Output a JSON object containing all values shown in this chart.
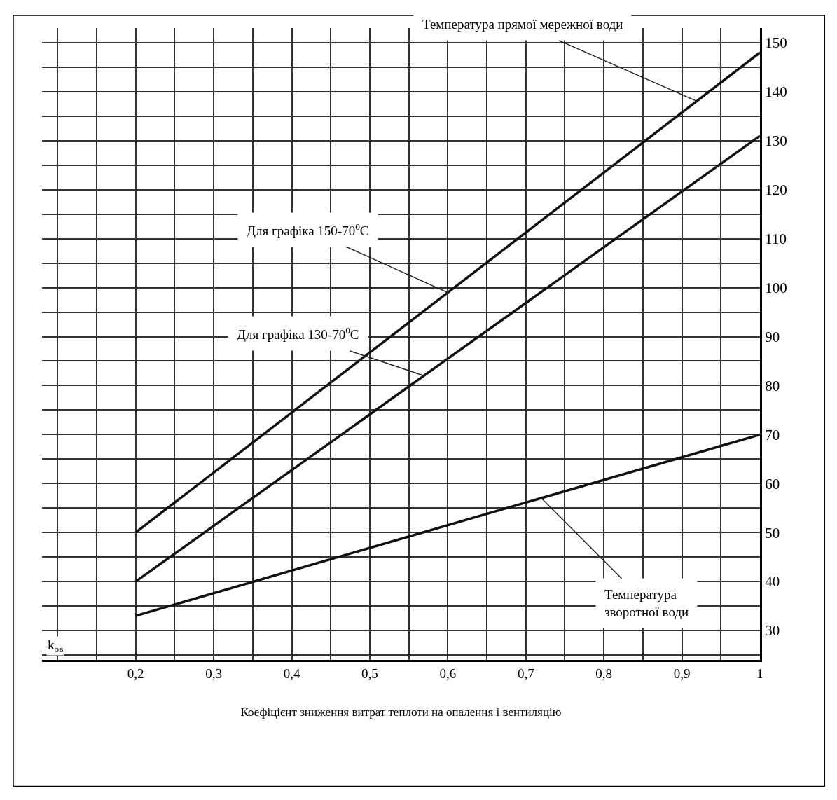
{
  "chart_data": {
    "type": "line",
    "xlabel": "Коефіцієнт зниження витрат теплоти на опалення і вентиляцію",
    "x": [
      0.2,
      1
    ],
    "series": [
      {
        "color": "#111111",
        "values": [
          50,
          148
        ]
      },
      {
        "color": "#111111",
        "values": [
          40,
          131
        ]
      },
      {
        "color": "#111111",
        "values": [
          33,
          70
        ]
      }
    ],
    "xlim": [
      0.08,
      1.0
    ],
    "xticks": [
      {
        "value": 0.2,
        "label": "0,2"
      },
      {
        "value": 0.3,
        "label": "0,3"
      },
      {
        "value": 0.4,
        "label": "0,4"
      },
      {
        "value": 0.5,
        "label": "0,5"
      },
      {
        "value": 0.6,
        "label": "0,6"
      },
      {
        "value": 0.7,
        "label": "0,7"
      },
      {
        "value": 0.8,
        "label": "0,8"
      },
      {
        "value": 0.9,
        "label": "0,9"
      },
      1
    ],
    "ylim": [
      24,
      153
    ],
    "yticks": [
      30,
      40,
      50,
      60,
      70,
      80,
      90,
      100,
      110,
      120,
      130,
      140,
      150
    ],
    "grid": true,
    "marker": "none",
    "line_style": "solid",
    "annotations": [
      {
        "text": "Температура прямої мережної води",
        "x": 0.92,
        "y": 138
      },
      {
        "text": "Для графіка 150-70$^{0}$C",
        "x": 0.6,
        "y": 99
      },
      {
        "text": "Для графіка 130-70$^{0}$C",
        "x": 0.57,
        "y": 82
      },
      {
        "text": "Температура\nзворотної води",
        "x": 0.72,
        "y": 57
      },
      "k$_{ов}$"
    ]
  }
}
